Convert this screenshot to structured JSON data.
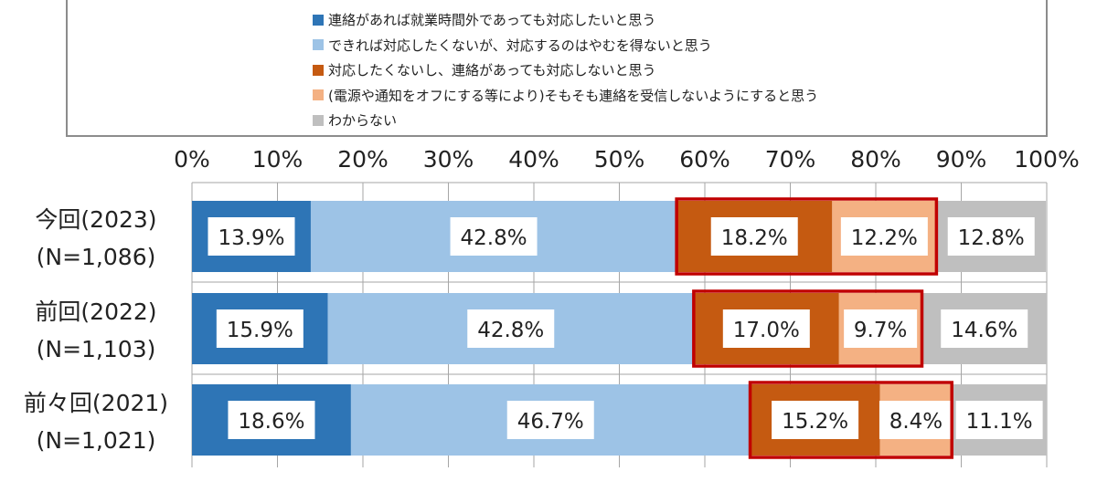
{
  "chart_data": {
    "type": "bar",
    "orientation": "horizontal",
    "stacked": "100%",
    "categories": [
      [
        "今回(2023)",
        "(N=1,086)"
      ],
      [
        "前回(2022)",
        "(N=1,103)"
      ],
      [
        "前々回(2021)",
        "(N=1,021)"
      ]
    ],
    "xlim": [
      0,
      100
    ],
    "xticks": [
      "0%",
      "10%",
      "20%",
      "30%",
      "40%",
      "50%",
      "60%",
      "70%",
      "80%",
      "90%",
      "100%"
    ],
    "grid": true,
    "legend_position": "top",
    "series": [
      {
        "name": "連絡があれば就業時間外であっても対応したいと思う",
        "color": "#2E75B6",
        "values": [
          13.9,
          15.9,
          18.6
        ],
        "labels": [
          "13.9%",
          "15.9%",
          "18.6%"
        ]
      },
      {
        "name": "できれば対応したくないが、対応するのはやむを得ないと思う",
        "color": "#9DC3E6",
        "values": [
          42.8,
          42.8,
          46.7
        ],
        "labels": [
          "42.8%",
          "42.8%",
          "46.7%"
        ]
      },
      {
        "name": "対応したくないし、連絡があっても対応しないと思う",
        "color": "#C55A11",
        "values": [
          18.2,
          17.0,
          15.2
        ],
        "labels": [
          "18.2%",
          "17.0%",
          "15.2%"
        ]
      },
      {
        "name": "(電源や通知をオフにする等により)そもそも連絡を受信しないようにすると思う",
        "color": "#F4B183",
        "values": [
          12.2,
          9.7,
          8.4
        ],
        "labels": [
          "12.2%",
          "9.7%",
          "8.4%"
        ]
      },
      {
        "name": "わからない",
        "color": "#BFBFBF",
        "values": [
          12.8,
          14.6,
          11.1
        ],
        "labels": [
          "12.8%",
          "14.6%",
          "11.1%"
        ]
      }
    ],
    "highlight": {
      "series": [
        2,
        3
      ],
      "color": "#C00000"
    }
  }
}
